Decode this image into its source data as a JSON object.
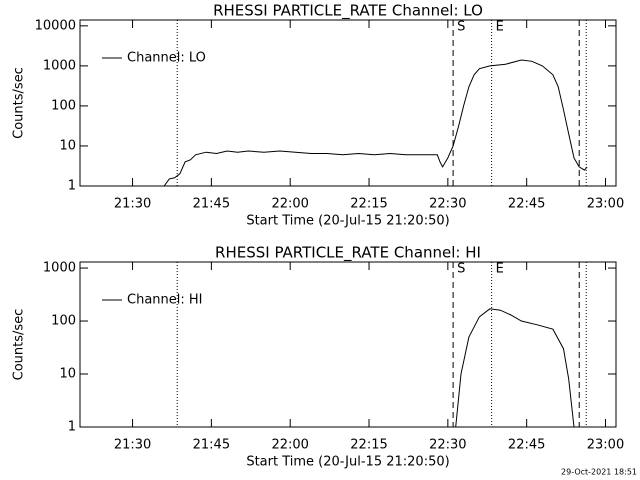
{
  "chart_data": [
    {
      "type": "line",
      "title": "RHESSI PARTICLE_RATE Channel: LO",
      "xlabel": "Start Time (20-Jul-15 21:20:50)",
      "ylabel": "Counts/sec",
      "log_y": true,
      "legend": "upper left",
      "xlim": [
        "21:20",
        "23:02"
      ],
      "xticks": [
        "21:30",
        "21:45",
        "22:00",
        "22:15",
        "22:30",
        "22:45",
        "23:00"
      ],
      "ylim": [
        1,
        14000
      ],
      "yticks": [
        1,
        10,
        100,
        1000,
        10000
      ],
      "markers": [
        {
          "x": "21:38:30",
          "style": "dotted"
        },
        {
          "x": "22:31:00",
          "style": "dashed",
          "label": "S"
        },
        {
          "x": "22:38:20",
          "style": "dotted",
          "label": "E"
        },
        {
          "x": "22:55:00",
          "style": "dashed"
        },
        {
          "x": "22:56:20",
          "style": "dotted"
        }
      ],
      "x": [
        "21:21:00",
        "21:21:30",
        "21:22:00",
        "21:22:30",
        "21:23:00",
        "21:23:30",
        "21:24:00",
        "21:24:30",
        "21:25:30",
        "21:26:00",
        "21:27:00",
        "21:27:30",
        "21:28:00",
        "21:28:30",
        "21:29:30",
        "21:30:00",
        "21:33:00",
        "21:33:30",
        "21:34:00",
        "21:35:00",
        "21:35:30",
        "21:36:00",
        "21:37:00",
        "21:38:00",
        "21:39:00",
        "21:40:00",
        "21:41:00",
        "21:42:00",
        "21:44:00",
        "21:46:00",
        "21:48:00",
        "21:50:00",
        "21:52:00",
        "21:55:00",
        "21:58:00",
        "22:01:00",
        "22:04:00",
        "22:07:00",
        "22:10:00",
        "22:13:00",
        "22:16:00",
        "22:19:00",
        "22:22:00",
        "22:25:00",
        "22:28:00",
        "22:28:30",
        "22:29:00",
        "22:30:00",
        "22:31:00",
        "22:32:00",
        "22:33:00",
        "22:34:00",
        "22:35:00",
        "22:36:00",
        "22:38:00",
        "22:41:00",
        "22:44:00",
        "22:46:00",
        "22:48:00",
        "22:50:00",
        "22:51:00",
        "22:52:00",
        "22:53:00",
        "22:54:00",
        "22:55:00",
        "22:56:00",
        "22:56:30"
      ],
      "series": [
        {
          "name": "Channel: LO",
          "color": "#000000",
          "values": [
            1,
            0,
            1,
            0,
            1,
            0,
            1,
            0,
            1,
            0,
            1,
            0,
            1,
            0,
            1,
            0,
            0,
            1,
            0,
            1,
            0,
            1,
            1.5,
            1.6,
            2,
            4,
            4.5,
            6,
            7,
            6.5,
            7.5,
            7,
            7.5,
            7,
            7.5,
            7,
            6.5,
            6.5,
            6,
            6.5,
            6,
            6.5,
            6,
            6,
            6,
            4,
            3,
            5,
            10,
            30,
            100,
            300,
            600,
            850,
            1000,
            1100,
            1400,
            1300,
            1000,
            600,
            300,
            80,
            20,
            5,
            3,
            2.5,
            3
          ]
        }
      ]
    },
    {
      "type": "line",
      "title": "RHESSI PARTICLE_RATE Channel: HI",
      "xlabel": "Start Time (20-Jul-15 21:20:50)",
      "ylabel": "Counts/sec",
      "log_y": true,
      "legend": "upper left",
      "xlim": [
        "21:20",
        "23:02"
      ],
      "xticks": [
        "21:30",
        "21:45",
        "22:00",
        "22:15",
        "22:30",
        "22:45",
        "23:00"
      ],
      "ylim": [
        1,
        1300
      ],
      "yticks": [
        1,
        10,
        100,
        1000
      ],
      "markers": [
        {
          "x": "21:38:30",
          "style": "dotted"
        },
        {
          "x": "22:31:00",
          "style": "dashed",
          "label": "S"
        },
        {
          "x": "22:38:20",
          "style": "dotted",
          "label": "E"
        },
        {
          "x": "22:55:00",
          "style": "dashed"
        },
        {
          "x": "22:56:20",
          "style": "dotted"
        }
      ],
      "x": [
        "21:21:00",
        "22:31:00",
        "22:31:30",
        "22:32:30",
        "22:34:00",
        "22:36:00",
        "22:38:00",
        "22:40:00",
        "22:42:00",
        "22:44:00",
        "22:47:00",
        "22:50:00",
        "22:52:00",
        "22:53:00",
        "22:54:00",
        "22:54:30",
        "22:56:30"
      ],
      "series": [
        {
          "name": "Channel: HI",
          "color": "#000000",
          "values": [
            0,
            0,
            1,
            10,
            50,
            120,
            170,
            160,
            130,
            100,
            85,
            70,
            30,
            8,
            1,
            0,
            0
          ]
        }
      ]
    }
  ],
  "footer": "29-Oct-2021 18:51"
}
